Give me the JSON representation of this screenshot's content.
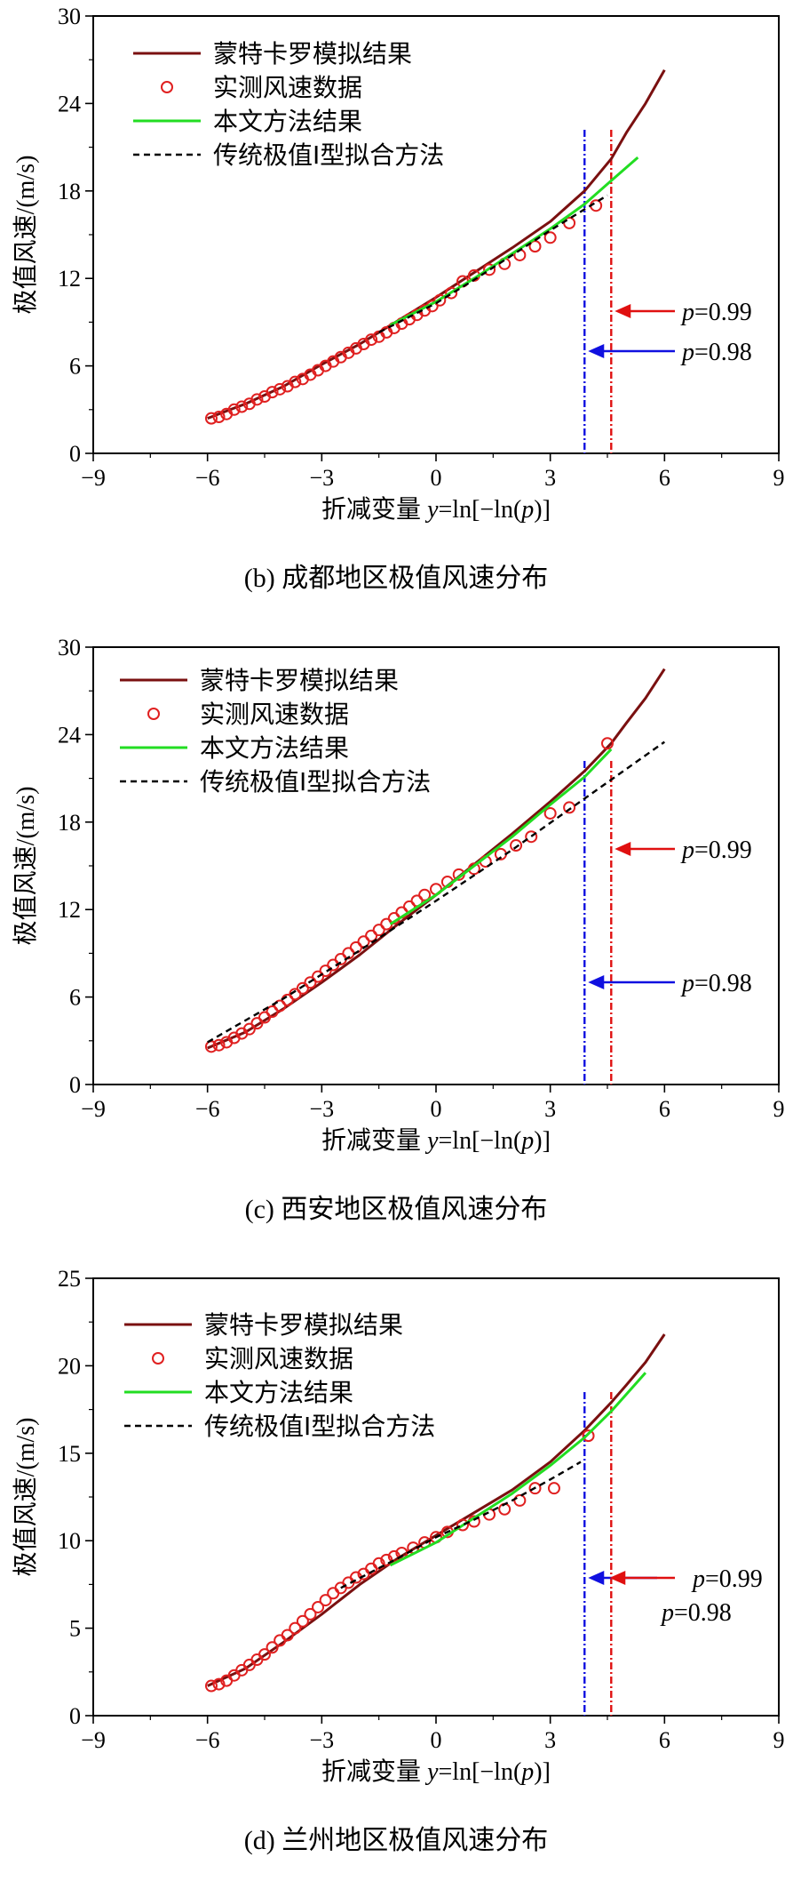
{
  "xlabel": {
    "cn": "折减变量 ",
    "y": "y",
    "mid": "=ln[−ln(",
    "p": "p",
    "end": ")]"
  },
  "ylabel": "极值风速/(m/s)",
  "x_ticks": [
    "−9",
    "−6",
    "−3",
    "0",
    "3",
    "6",
    "9"
  ],
  "legend": {
    "mc": "蒙特卡罗模拟结果",
    "obs": "实测风速数据",
    "fit": "本文方法结果",
    "gumbel": "传统极值I型拟合方法"
  },
  "annot": {
    "p": "p",
    "v99": "=0.99",
    "v98": "=0.98"
  },
  "colors": {
    "mc": "#7a1010",
    "obs": "#e02020",
    "fit": "#22dd22",
    "gumbel": "#000000",
    "blue": "#1010e0",
    "red": "#e01010"
  },
  "chart_data": [
    {
      "id": "b",
      "type": "line",
      "title": "(b)  成都地区极值风速分布",
      "xlim": [
        -9,
        9
      ],
      "ylim": [
        0,
        30
      ],
      "y_ticks": [
        "0",
        "6",
        "12",
        "18",
        "24",
        "30"
      ],
      "y_tick_values": [
        0,
        6,
        12,
        18,
        24,
        30
      ],
      "xlabel": "折减变量 y=ln[−ln(p)]",
      "ylabel": "极值风速/(m/s)",
      "p99_x": 4.6,
      "p98_x": 3.9,
      "series": [
        {
          "name": "蒙特卡罗模拟结果",
          "kind": "line",
          "x": [
            -6.0,
            -5.5,
            -5.0,
            -4.0,
            -3.0,
            -2.0,
            -1.0,
            0.0,
            1.0,
            2.0,
            3.0,
            3.9,
            4.6,
            5.0,
            5.5,
            6.0
          ],
          "y": [
            2.4,
            2.9,
            3.4,
            4.6,
            6.1,
            7.5,
            9.1,
            10.7,
            12.4,
            14.1,
            15.9,
            18.0,
            20.2,
            22.0,
            24.0,
            26.3
          ]
        },
        {
          "name": "实测风速数据",
          "kind": "scatter",
          "x": [
            -5.9,
            -5.7,
            -5.5,
            -5.3,
            -5.1,
            -4.9,
            -4.7,
            -4.5,
            -4.3,
            -4.1,
            -3.9,
            -3.7,
            -3.5,
            -3.3,
            -3.1,
            -2.9,
            -2.7,
            -2.5,
            -2.3,
            -2.1,
            -1.9,
            -1.7,
            -1.5,
            -1.3,
            -1.1,
            -0.9,
            -0.7,
            -0.5,
            -0.3,
            -0.1,
            0.1,
            0.4,
            0.7,
            1.0,
            1.4,
            1.8,
            2.2,
            2.6,
            3.0,
            3.5,
            4.2
          ],
          "y": [
            2.4,
            2.5,
            2.7,
            3.0,
            3.2,
            3.4,
            3.7,
            3.9,
            4.2,
            4.4,
            4.6,
            4.9,
            5.1,
            5.4,
            5.7,
            6.0,
            6.3,
            6.6,
            6.9,
            7.2,
            7.5,
            7.8,
            8.0,
            8.3,
            8.6,
            8.9,
            9.2,
            9.5,
            9.8,
            10.1,
            10.5,
            11.0,
            11.8,
            12.2,
            12.6,
            13.0,
            13.6,
            14.2,
            14.8,
            15.8,
            17.0
          ]
        },
        {
          "name": "本文方法结果",
          "kind": "line",
          "x": [
            -1.2,
            0.0,
            1.0,
            2.0,
            3.0,
            3.9,
            4.6,
            5.3
          ],
          "y": [
            8.8,
            10.4,
            12.0,
            13.7,
            15.4,
            17.1,
            18.7,
            20.3
          ]
        },
        {
          "name": "传统极值I型拟合方法",
          "kind": "dashed",
          "x": [
            -1.5,
            0.0,
            1.0,
            2.0,
            3.0,
            4.5
          ],
          "y": [
            8.3,
            10.3,
            11.9,
            13.6,
            15.3,
            17.7
          ]
        }
      ]
    },
    {
      "id": "c",
      "type": "line",
      "title": "(c)  西安地区极值风速分布",
      "xlim": [
        -9,
        9
      ],
      "ylim": [
        0,
        30
      ],
      "y_ticks": [
        "0",
        "6",
        "12",
        "18",
        "24",
        "30"
      ],
      "y_tick_values": [
        0,
        6,
        12,
        18,
        24,
        30
      ],
      "xlabel": "折减变量 y=ln[−ln(p)]",
      "ylabel": "极值风速/(m/s)",
      "p99_x": 4.6,
      "p98_x": 3.9,
      "series": [
        {
          "name": "蒙特卡罗模拟结果",
          "kind": "line",
          "x": [
            -6.0,
            -5.0,
            -4.0,
            -3.0,
            -2.0,
            -1.0,
            0.0,
            1.0,
            2.0,
            3.0,
            3.9,
            4.6,
            5.0,
            5.5,
            6.0
          ],
          "y": [
            2.5,
            3.6,
            5.2,
            7.0,
            8.9,
            11.0,
            13.0,
            15.1,
            17.2,
            19.4,
            21.5,
            23.4,
            24.8,
            26.5,
            28.5
          ]
        },
        {
          "name": "实测风速数据",
          "kind": "scatter",
          "x": [
            -5.9,
            -5.7,
            -5.5,
            -5.3,
            -5.1,
            -4.9,
            -4.7,
            -4.5,
            -4.3,
            -4.1,
            -3.9,
            -3.7,
            -3.5,
            -3.3,
            -3.1,
            -2.9,
            -2.7,
            -2.5,
            -2.3,
            -2.1,
            -1.9,
            -1.7,
            -1.5,
            -1.3,
            -1.1,
            -0.9,
            -0.7,
            -0.5,
            -0.3,
            0.0,
            0.3,
            0.6,
            1.0,
            1.3,
            1.7,
            2.1,
            2.5,
            3.0,
            3.5,
            4.5
          ],
          "y": [
            2.6,
            2.7,
            2.9,
            3.2,
            3.5,
            3.8,
            4.2,
            4.6,
            5.0,
            5.4,
            5.8,
            6.2,
            6.6,
            7.0,
            7.4,
            7.8,
            8.2,
            8.6,
            9.0,
            9.4,
            9.8,
            10.2,
            10.6,
            11.0,
            11.4,
            11.8,
            12.2,
            12.6,
            13.0,
            13.4,
            13.9,
            14.4,
            14.8,
            15.3,
            15.8,
            16.4,
            17.0,
            18.6,
            19.0,
            23.4
          ]
        },
        {
          "name": "本文方法结果",
          "kind": "line",
          "x": [
            -1.2,
            0.0,
            1.0,
            2.0,
            3.0,
            3.9,
            4.6
          ],
          "y": [
            11.0,
            13.0,
            15.0,
            17.0,
            19.2,
            21.1,
            23.0
          ]
        },
        {
          "name": "传统极值I型拟合方法",
          "kind": "dashed",
          "x": [
            -6.0,
            -4.0,
            -2.0,
            0.0,
            2.0,
            4.0,
            6.0
          ],
          "y": [
            2.9,
            5.9,
            9.2,
            12.6,
            16.1,
            19.8,
            23.5
          ]
        }
      ]
    },
    {
      "id": "d",
      "type": "line",
      "title": "(d)  兰州地区极值风速分布",
      "xlim": [
        -9,
        9
      ],
      "ylim": [
        0,
        25
      ],
      "y_ticks": [
        "0",
        "5",
        "10",
        "15",
        "20",
        "25"
      ],
      "y_tick_values": [
        0,
        5,
        10,
        15,
        20,
        25
      ],
      "xlabel": "折减变量 y=ln[−ln(p)]",
      "ylabel": "极值风速/(m/s)",
      "p99_x": 4.6,
      "p98_x": 3.9,
      "series": [
        {
          "name": "蒙特卡罗模拟结果",
          "kind": "line",
          "x": [
            -6.0,
            -5.0,
            -4.0,
            -3.0,
            -2.0,
            -1.0,
            0.0,
            1.0,
            2.0,
            3.0,
            3.9,
            4.6,
            5.0,
            5.5,
            6.0
          ],
          "y": [
            1.7,
            2.7,
            4.2,
            5.8,
            7.5,
            9.0,
            10.3,
            11.6,
            12.9,
            14.5,
            16.3,
            17.9,
            18.9,
            20.2,
            21.8
          ]
        },
        {
          "name": "实测风速数据",
          "kind": "scatter",
          "x": [
            -5.9,
            -5.7,
            -5.5,
            -5.3,
            -5.1,
            -4.9,
            -4.7,
            -4.5,
            -4.3,
            -4.1,
            -3.9,
            -3.7,
            -3.5,
            -3.3,
            -3.1,
            -2.9,
            -2.7,
            -2.5,
            -2.3,
            -2.1,
            -1.9,
            -1.7,
            -1.5,
            -1.3,
            -1.1,
            -0.9,
            -0.6,
            -0.3,
            0.0,
            0.3,
            0.7,
            1.0,
            1.4,
            1.8,
            2.2,
            2.6,
            3.1,
            4.0
          ],
          "y": [
            1.7,
            1.8,
            2.0,
            2.3,
            2.6,
            2.9,
            3.2,
            3.5,
            3.9,
            4.3,
            4.6,
            5.0,
            5.4,
            5.8,
            6.2,
            6.6,
            7.0,
            7.3,
            7.6,
            7.9,
            8.1,
            8.4,
            8.7,
            8.9,
            9.1,
            9.3,
            9.6,
            9.9,
            10.2,
            10.5,
            10.9,
            11.1,
            11.5,
            11.8,
            12.3,
            13.0,
            13.0,
            16.0
          ]
        },
        {
          "name": "本文方法结果",
          "kind": "line",
          "x": [
            -1.2,
            0.0,
            1.0,
            2.0,
            3.0,
            3.9,
            4.6,
            5.5
          ],
          "y": [
            8.6,
            9.9,
            11.3,
            12.7,
            14.3,
            15.9,
            17.4,
            19.6
          ]
        },
        {
          "name": "传统极值I型拟合方法",
          "kind": "dashed",
          "x": [
            -2.5,
            -1.0,
            0.0,
            1.0,
            2.0,
            3.0,
            3.8
          ],
          "y": [
            7.3,
            9.0,
            10.2,
            11.2,
            12.3,
            13.5,
            14.5
          ]
        }
      ]
    }
  ]
}
